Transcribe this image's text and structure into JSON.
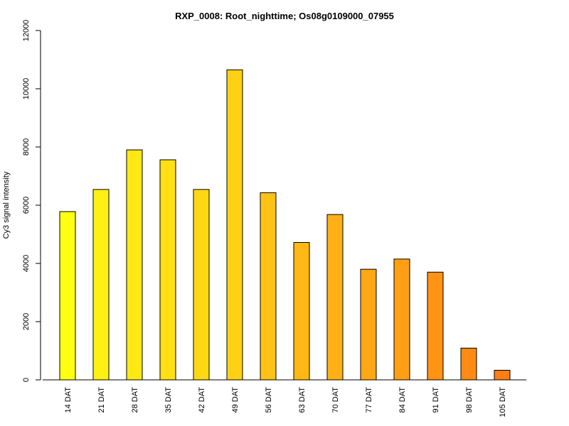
{
  "chart_data": {
    "type": "bar",
    "title": "RXP_0008: Root_nighttime; Os08g0109000_07955",
    "xlabel": "",
    "ylabel": "Cy3 signal intensity",
    "ylim": [
      0,
      12000
    ],
    "yticks": [
      0,
      2000,
      4000,
      6000,
      8000,
      10000,
      12000
    ],
    "categories": [
      "14 DAT",
      "21 DAT",
      "28 DAT",
      "35 DAT",
      "42 DAT",
      "49 DAT",
      "56 DAT",
      "63 DAT",
      "70 DAT",
      "77 DAT",
      "84 DAT",
      "91 DAT",
      "98 DAT",
      "105 DAT"
    ],
    "values": [
      5780,
      6540,
      7900,
      7560,
      6540,
      10650,
      6430,
      4720,
      5680,
      3800,
      4150,
      3700,
      1090,
      330
    ],
    "colors": [
      "#ffff14",
      "#fff014",
      "#ffe814",
      "#ffe014",
      "#ffd814",
      "#ffd014",
      "#ffc214",
      "#ffb814",
      "#ffb014",
      "#ffa814",
      "#ffa014",
      "#ff9414",
      "#ff8a14",
      "#ff7e14"
    ],
    "grid": false,
    "legend": "none"
  }
}
